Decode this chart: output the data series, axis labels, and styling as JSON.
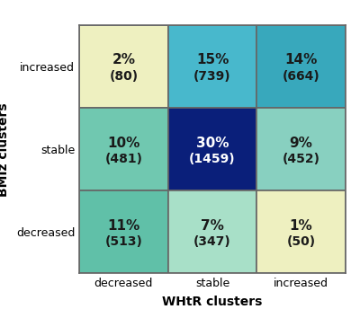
{
  "grid": [
    [
      {
        "pct": "2%",
        "count": "(80)",
        "color": "#eef0c0",
        "text_color": "#1a1a1a"
      },
      {
        "pct": "15%",
        "count": "(739)",
        "color": "#48b8cc",
        "text_color": "#1a1a1a"
      },
      {
        "pct": "14%",
        "count": "(664)",
        "color": "#38a8bc",
        "text_color": "#1a1a1a"
      }
    ],
    [
      {
        "pct": "10%",
        "count": "(481)",
        "color": "#70c8b0",
        "text_color": "#1a1a1a"
      },
      {
        "pct": "30%",
        "count": "(1459)",
        "color": "#0a1f7a",
        "text_color": "#ffffff"
      },
      {
        "pct": "9%",
        "count": "(452)",
        "color": "#88d0c0",
        "text_color": "#1a1a1a"
      }
    ],
    [
      {
        "pct": "11%",
        "count": "(513)",
        "color": "#60c0a8",
        "text_color": "#1a1a1a"
      },
      {
        "pct": "7%",
        "count": "(347)",
        "color": "#a8e0c8",
        "text_color": "#1a1a1a"
      },
      {
        "pct": "1%",
        "count": "(50)",
        "color": "#eef0c0",
        "text_color": "#1a1a1a"
      }
    ]
  ],
  "row_labels": [
    "increased",
    "stable",
    "decreased"
  ],
  "col_labels": [
    "decreased",
    "stable",
    "increased"
  ],
  "ylabel": "BMIz clusters",
  "xlabel": "WHtR clusters",
  "bg_color": "#ffffff",
  "grid_line_color": "#666666",
  "label_fontsize": 10,
  "tick_fontsize": 9,
  "cell_fontsize_pct": 11,
  "cell_fontsize_count": 10
}
